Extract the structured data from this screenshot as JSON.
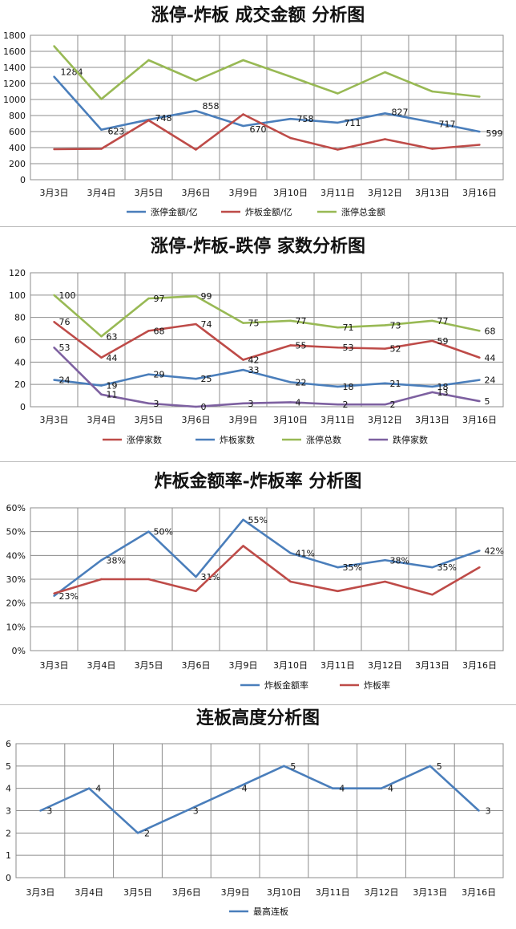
{
  "charts": [
    {
      "title": "涨停-炸板 成交金额 分析图",
      "chart_data": {
        "type": "line",
        "categories": [
          "3月3日",
          "3月4日",
          "3月5日",
          "3月6日",
          "3月9日",
          "3月10日",
          "3月11日",
          "3月12日",
          "3月13日",
          "3月16日"
        ],
        "ylim": [
          0,
          1800
        ],
        "yticks": [
          "0",
          "200",
          "400",
          "600",
          "800",
          "1000",
          "1200",
          "1400",
          "1600",
          "1800"
        ],
        "yticks_values": [
          0,
          200,
          400,
          600,
          800,
          1000,
          1200,
          1400,
          1600,
          1800
        ],
        "grid": true,
        "legend": "bottom",
        "series": [
          {
            "name": "涨停金额/亿",
            "color": "#4a7ebb",
            "values": [
              1284,
              623,
              748,
              858,
              670,
              758,
              711,
              827,
              717,
              599
            ],
            "labels": [
              "1284",
              "623",
              "748",
              "858",
              "670",
              "758",
              "711",
              "827",
              "717",
              "599"
            ]
          },
          {
            "name": "炸板金额/亿",
            "color": "#be4b48",
            "values": [
              380,
              385,
              740,
              375,
              815,
              520,
              375,
              505,
              385,
              435
            ],
            "labels": []
          },
          {
            "name": "涨停总金额",
            "color": "#98b954",
            "values": [
              1665,
              1005,
              1490,
              1235,
              1490,
              1285,
              1075,
              1340,
              1100,
              1035
            ],
            "labels": []
          }
        ]
      }
    },
    {
      "title": "涨停-炸板-跌停 家数分析图",
      "chart_data": {
        "type": "line",
        "categories": [
          "3月3日",
          "3月4日",
          "3月5日",
          "3月6日",
          "3月9日",
          "3月10日",
          "3月11日",
          "3月12日",
          "3月13日",
          "3月16日"
        ],
        "ylim": [
          0,
          120
        ],
        "yticks": [
          "0",
          "20",
          "40",
          "60",
          "80",
          "100",
          "120"
        ],
        "yticks_values": [
          0,
          20,
          40,
          60,
          80,
          100,
          120
        ],
        "grid": true,
        "legend": "bottom",
        "series": [
          {
            "name": "涨停家数",
            "color": "#be4b48",
            "values": [
              76,
              44,
              68,
              74,
              42,
              55,
              53,
              52,
              59,
              44
            ],
            "labels": [
              "76",
              "44",
              "68",
              "74",
              "42",
              "55",
              "53",
              "52",
              "59",
              "44"
            ]
          },
          {
            "name": "炸板家数",
            "color": "#4a7ebb",
            "values": [
              24,
              19,
              29,
              25,
              33,
              22,
              18,
              21,
              18,
              24
            ],
            "labels": [
              "24",
              "19",
              "29",
              "25",
              "33",
              "22",
              "18",
              "21",
              "18",
              "24"
            ]
          },
          {
            "name": "涨停总数",
            "color": "#98b954",
            "values": [
              100,
              63,
              97,
              99,
              75,
              77,
              71,
              73,
              77,
              68
            ],
            "labels": [
              "100",
              "63",
              "97",
              "99",
              "75",
              "77",
              "71",
              "73",
              "77",
              "68"
            ]
          },
          {
            "name": "跌停家数",
            "color": "#7d60a0",
            "values": [
              53,
              11,
              3,
              0,
              3,
              4,
              2,
              2,
              13,
              5
            ],
            "labels": [
              "53",
              "11",
              "3",
              "0",
              "3",
              "4",
              "2",
              "2",
              "13",
              "5"
            ]
          }
        ]
      }
    },
    {
      "title": "炸板金额率-炸板率 分析图",
      "chart_data": {
        "type": "line",
        "categories": [
          "3月3日",
          "3月4日",
          "3月5日",
          "3月6日",
          "3月9日",
          "3月10日",
          "3月11日",
          "3月12日",
          "3月13日",
          "3月16日"
        ],
        "ylim": [
          0,
          60
        ],
        "yticks": [
          "0%",
          "10%",
          "20%",
          "30%",
          "40%",
          "50%",
          "60%"
        ],
        "yticks_values": [
          0,
          10,
          20,
          30,
          40,
          50,
          60
        ],
        "grid": true,
        "legend": "bottom",
        "series": [
          {
            "name": "炸板金额率",
            "color": "#4a7ebb",
            "values": [
              23,
              38,
              50,
              31,
              55,
              41,
              35,
              38,
              35,
              42
            ],
            "labels": [
              "23%",
              "38%",
              "50%",
              "31%",
              "55%",
              "41%",
              "35%",
              "38%",
              "35%",
              "42%"
            ]
          },
          {
            "name": "炸板率",
            "color": "#be4b48",
            "values": [
              24,
              30,
              30,
              25,
              44,
              29,
              25,
              29,
              23.5,
              35
            ],
            "labels": []
          }
        ]
      }
    },
    {
      "title": "连板高度分析图",
      "chart_data": {
        "type": "line",
        "categories": [
          "3月3日",
          "3月4日",
          "3月5日",
          "3月6日",
          "3月9日",
          "3月10日",
          "3月11日",
          "3月12日",
          "3月13日",
          "3月16日"
        ],
        "ylim": [
          0,
          6
        ],
        "yticks": [
          "0",
          "1",
          "2",
          "3",
          "4",
          "5",
          "6"
        ],
        "yticks_values": [
          0,
          1,
          2,
          3,
          4,
          5,
          6
        ],
        "grid": true,
        "legend": "bottom",
        "series": [
          {
            "name": "最高连板",
            "color": "#4a7ebb",
            "values": [
              3,
              4,
              2,
              3,
              4,
              5,
              4,
              4,
              5,
              3
            ],
            "labels": [
              "3",
              "4",
              "2",
              "3",
              "4",
              "5",
              "4",
              "4",
              "5",
              "3"
            ]
          }
        ]
      }
    }
  ]
}
